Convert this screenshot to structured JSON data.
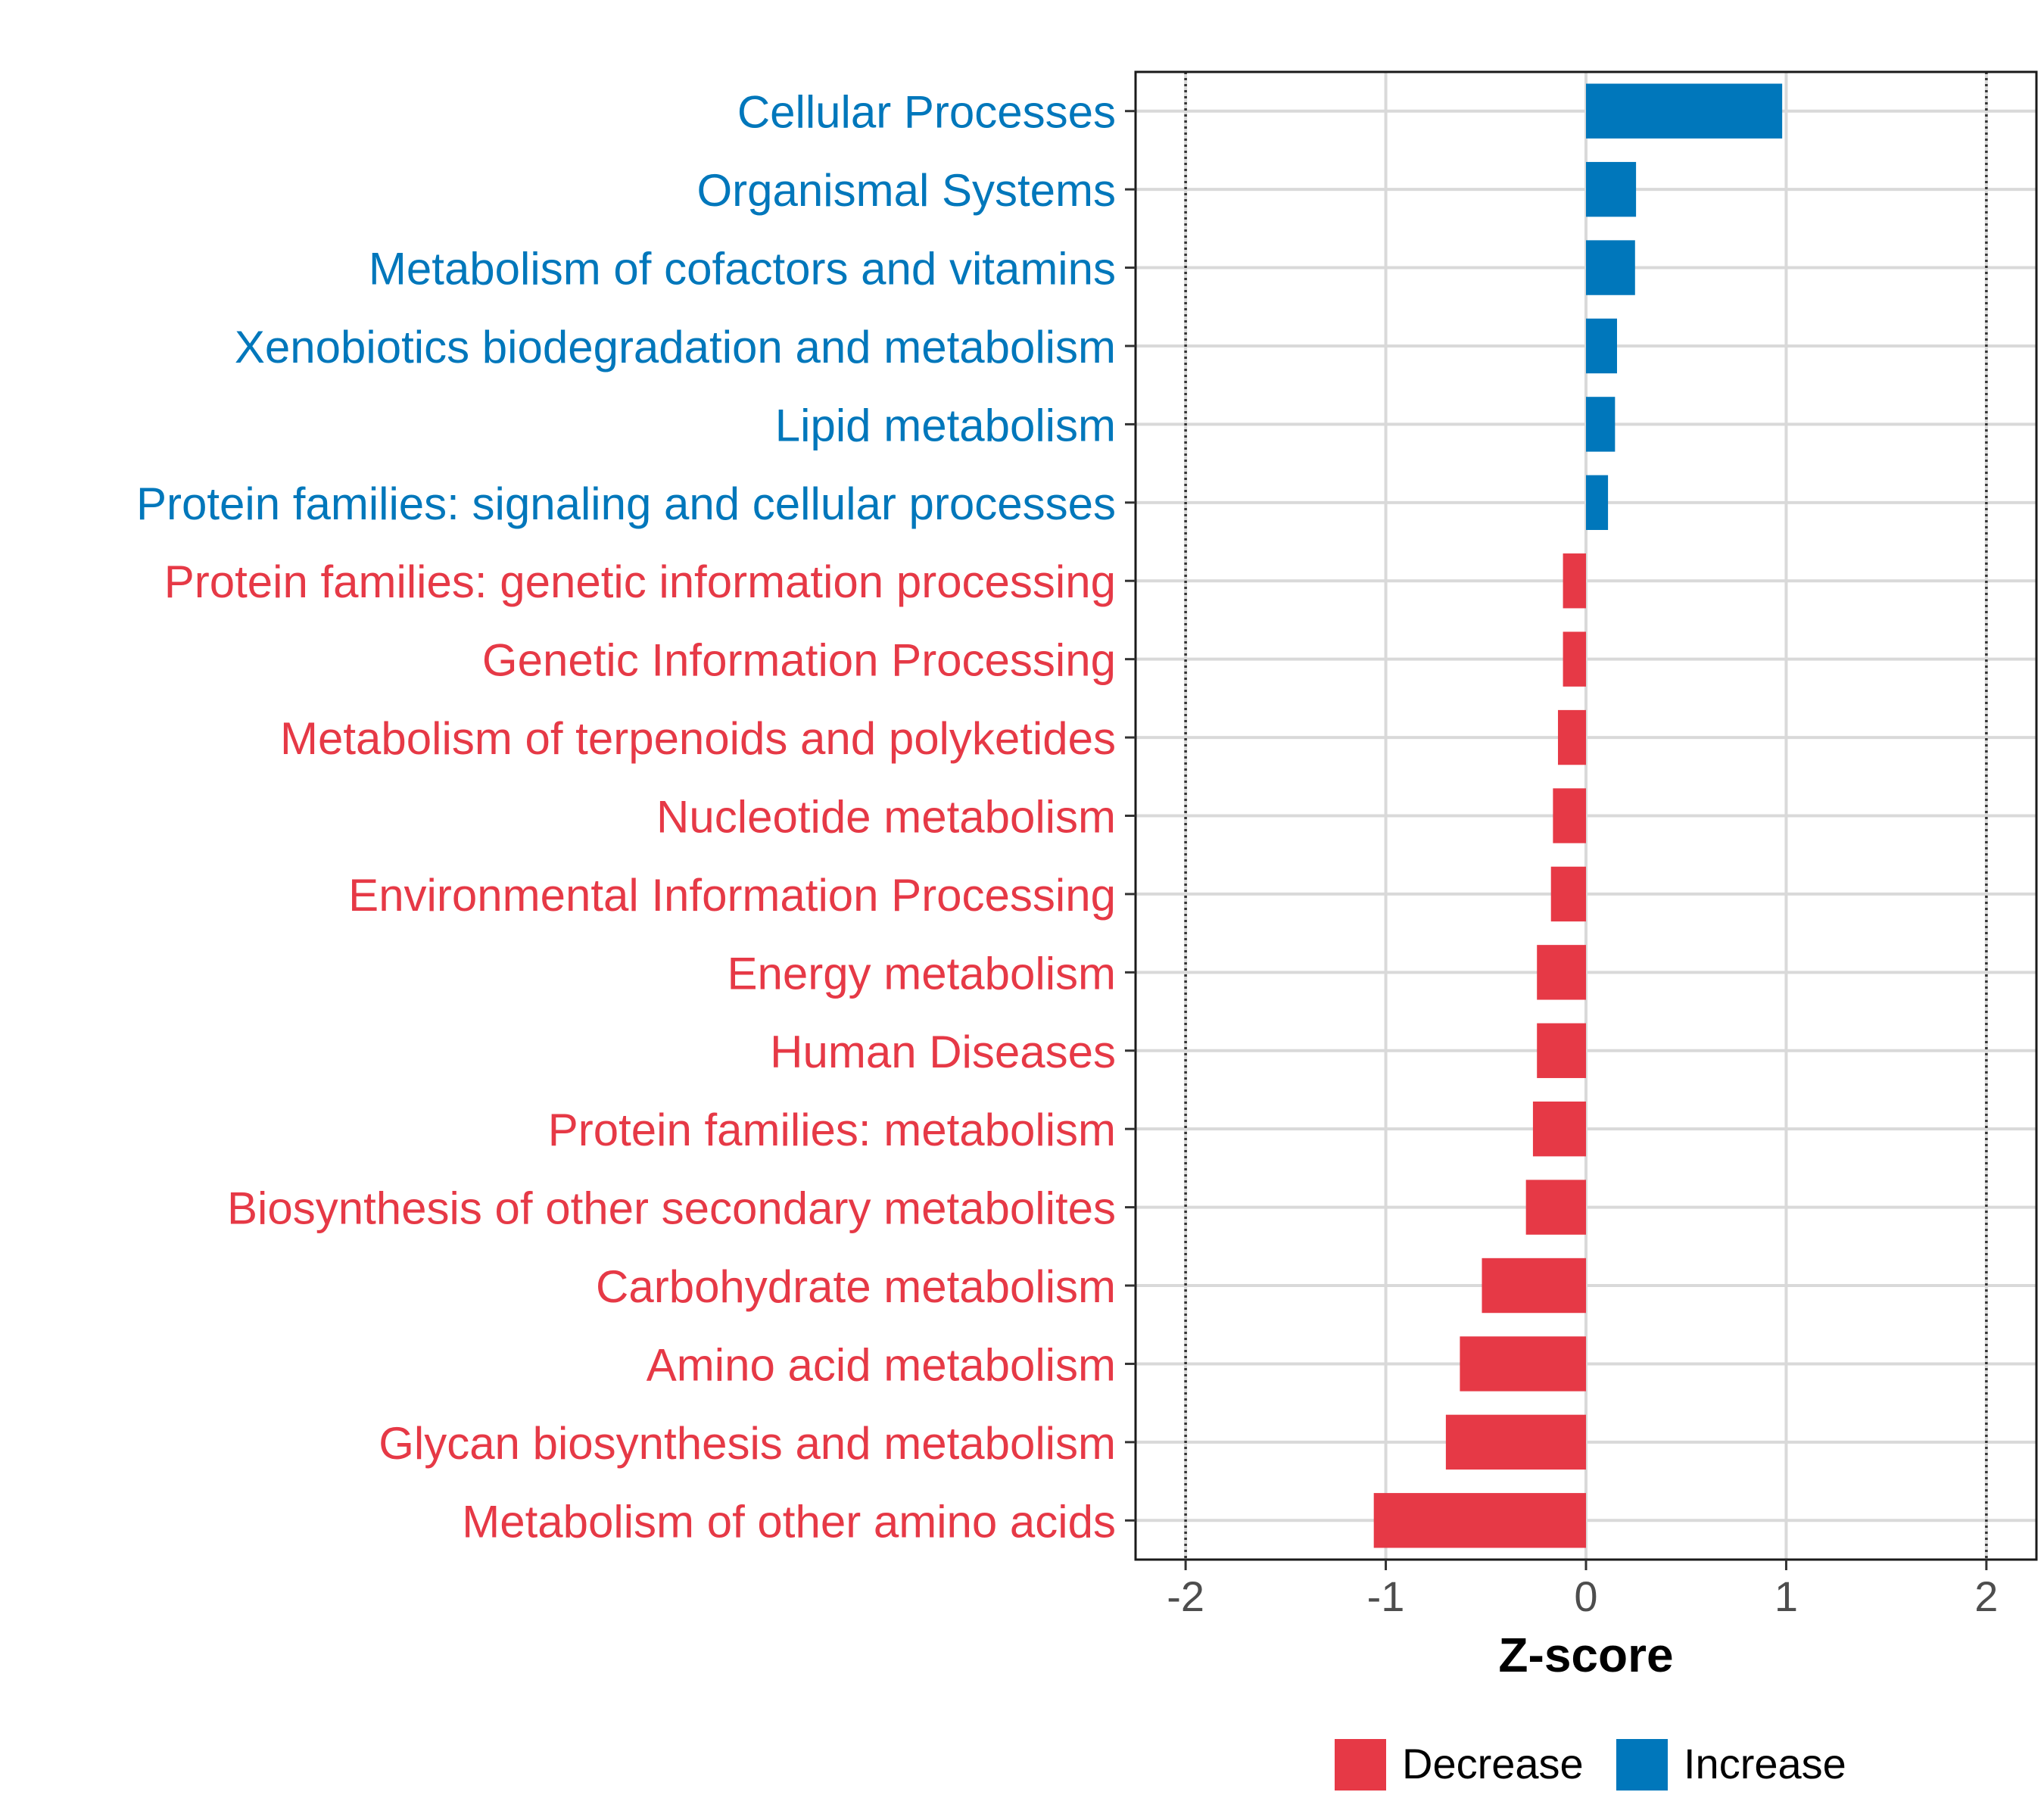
{
  "chart_data": {
    "type": "bar",
    "orientation": "horizontal",
    "title": "",
    "xlabel": "Z-score",
    "ylabel": "",
    "xlim": [
      -2.25,
      2.25
    ],
    "xticks": [
      -2,
      -1,
      0,
      1,
      2
    ],
    "xtick_labels": [
      "-2",
      "-1",
      "0",
      "1",
      "2"
    ],
    "reference_lines": [
      -2,
      2
    ],
    "grid": true,
    "categories": [
      "Cellular Processes",
      "Organismal Systems",
      "Metabolism of cofactors and vitamins",
      "Xenobiotics biodegradation and metabolism",
      "Lipid metabolism",
      "Protein families: signaling and cellular processes",
      "Protein families: genetic information processing",
      "Genetic Information Processing",
      "Metabolism of terpenoids and polyketides",
      "Nucleotide metabolism",
      "Environmental Information Processing",
      "Energy metabolism",
      "Human Diseases",
      "Protein families: metabolism",
      "Biosynthesis of other secondary metabolites",
      "Carbohydrate metabolism",
      "Amino acid metabolism",
      "Glycan biosynthesis and metabolism",
      "Metabolism of other amino acids"
    ],
    "values": [
      0.98,
      0.25,
      0.245,
      0.155,
      0.145,
      0.11,
      -0.115,
      -0.115,
      -0.14,
      -0.165,
      -0.175,
      -0.245,
      -0.245,
      -0.265,
      -0.3,
      -0.52,
      -0.63,
      -0.7,
      -1.06
    ],
    "groups": [
      "Increase",
      "Increase",
      "Increase",
      "Increase",
      "Increase",
      "Increase",
      "Decrease",
      "Decrease",
      "Decrease",
      "Decrease",
      "Decrease",
      "Decrease",
      "Decrease",
      "Decrease",
      "Decrease",
      "Decrease",
      "Decrease",
      "Decrease",
      "Decrease"
    ],
    "legend": {
      "placement": "bottom",
      "entries": [
        {
          "label": "Decrease",
          "color": "#E63946"
        },
        {
          "label": "Increase",
          "color": "#0077BB"
        }
      ]
    },
    "colors": {
      "Decrease": "#E63946",
      "Increase": "#0077BB"
    }
  }
}
